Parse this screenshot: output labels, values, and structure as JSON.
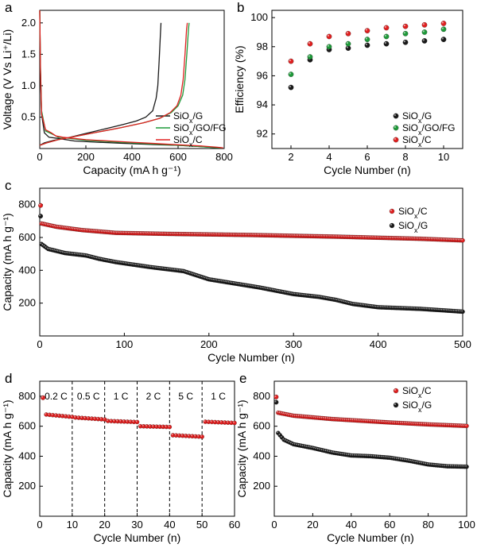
{
  "colors": {
    "black_series": "#1a1a1a",
    "green_series": "#1f9a3a",
    "red_series": "#e02020"
  },
  "chart_data": [
    {
      "panel": "a",
      "type": "line",
      "xlabel": "Capacity (mA h g⁻¹)",
      "ylabel": "Voltage (V Vs Li⁺/Li)",
      "xlim": [
        0,
        800
      ],
      "ylim": [
        0,
        2.2
      ],
      "xticks": [
        0,
        200,
        400,
        600,
        800
      ],
      "yticks": [
        0.5,
        1.0,
        1.5,
        2.0
      ],
      "legend": "right",
      "series": [
        {
          "name": "SiOx/G",
          "legend_main": "SiO",
          "legend_sub": "x",
          "legend_tail": "/G",
          "color": "black",
          "discharge": [
            [
              0,
              2.2
            ],
            [
              3,
              1.2
            ],
            [
              8,
              0.55
            ],
            [
              20,
              0.25
            ],
            [
              40,
              0.18
            ],
            [
              80,
              0.16
            ],
            [
              150,
              0.12
            ],
            [
              250,
              0.1
            ],
            [
              350,
              0.085
            ],
            [
              450,
              0.07
            ],
            [
              520,
              0.06
            ],
            [
              600,
              0.05
            ],
            [
              700,
              0.03
            ],
            [
              760,
              0.015
            ],
            [
              790,
              0.01
            ]
          ],
          "charge": [
            [
              0,
              0.05
            ],
            [
              20,
              0.09
            ],
            [
              60,
              0.13
            ],
            [
              120,
              0.17
            ],
            [
              200,
              0.24
            ],
            [
              280,
              0.31
            ],
            [
              360,
              0.38
            ],
            [
              420,
              0.44
            ],
            [
              460,
              0.5
            ],
            [
              490,
              0.6
            ],
            [
              505,
              0.8
            ],
            [
              512,
              1.0
            ],
            [
              518,
              1.4
            ],
            [
              523,
              1.8
            ],
            [
              526,
              2.0
            ]
          ]
        },
        {
          "name": "SiOx/GO/FG",
          "legend_main": "SiO",
          "legend_sub": "x",
          "legend_tail": "/GO/FG",
          "color": "green",
          "discharge": [
            [
              0,
              2.2
            ],
            [
              3,
              1.3
            ],
            [
              8,
              0.6
            ],
            [
              25,
              0.28
            ],
            [
              60,
              0.22
            ],
            [
              80,
              0.18
            ],
            [
              110,
              0.17
            ],
            [
              200,
              0.13
            ],
            [
              300,
              0.11
            ],
            [
              400,
              0.09
            ],
            [
              500,
              0.07
            ],
            [
              600,
              0.05
            ],
            [
              700,
              0.03
            ],
            [
              760,
              0.015
            ],
            [
              790,
              0.01
            ]
          ],
          "charge": [
            [
              0,
              0.05
            ],
            [
              30,
              0.09
            ],
            [
              80,
              0.14
            ],
            [
              150,
              0.19
            ],
            [
              250,
              0.26
            ],
            [
              350,
              0.33
            ],
            [
              450,
              0.41
            ],
            [
              520,
              0.48
            ],
            [
              570,
              0.57
            ],
            [
              600,
              0.68
            ],
            [
              620,
              0.85
            ],
            [
              630,
              1.1
            ],
            [
              638,
              1.5
            ],
            [
              645,
              1.9
            ],
            [
              648,
              2.0
            ]
          ]
        },
        {
          "name": "SiOx/C",
          "legend_main": "SiO",
          "legend_sub": "x",
          "legend_tail": "/C",
          "color": "red",
          "discharge": [
            [
              0,
              2.2
            ],
            [
              3,
              1.25
            ],
            [
              8,
              0.55
            ],
            [
              25,
              0.3
            ],
            [
              50,
              0.25
            ],
            [
              70,
              0.2
            ],
            [
              100,
              0.18
            ],
            [
              200,
              0.14
            ],
            [
              300,
              0.12
            ],
            [
              400,
              0.1
            ],
            [
              500,
              0.08
            ],
            [
              600,
              0.06
            ],
            [
              700,
              0.04
            ],
            [
              770,
              0.02
            ],
            [
              795,
              0.01
            ]
          ],
          "charge": [
            [
              0,
              0.05
            ],
            [
              30,
              0.09
            ],
            [
              80,
              0.14
            ],
            [
              150,
              0.19
            ],
            [
              250,
              0.26
            ],
            [
              350,
              0.33
            ],
            [
              450,
              0.41
            ],
            [
              520,
              0.48
            ],
            [
              565,
              0.57
            ],
            [
              595,
              0.68
            ],
            [
              612,
              0.85
            ],
            [
              622,
              1.1
            ],
            [
              630,
              1.5
            ],
            [
              637,
              1.9
            ],
            [
              640,
              2.0
            ]
          ]
        }
      ]
    },
    {
      "panel": "b",
      "type": "scatter",
      "xlabel": "Cycle Number (n)",
      "ylabel": "Efficiency (%)",
      "xlim": [
        1,
        11
      ],
      "ylim": [
        91,
        100.5
      ],
      "xticks": [
        2,
        4,
        6,
        8,
        10
      ],
      "yticks": [
        92,
        94,
        96,
        98,
        100
      ],
      "legend": "bottom-right",
      "x": [
        2,
        3,
        4,
        5,
        6,
        7,
        8,
        9,
        10
      ],
      "series": [
        {
          "name": "SiOx/G",
          "legend_main": "SiO",
          "legend_sub": "x",
          "legend_tail": "/G",
          "color": "black",
          "values": [
            95.2,
            97.1,
            97.8,
            97.9,
            98.1,
            98.2,
            98.3,
            98.4,
            98.5
          ]
        },
        {
          "name": "SiOx/GO/FG",
          "legend_main": "SiO",
          "legend_sub": "x",
          "legend_tail": "/GO/FG",
          "color": "green",
          "values": [
            96.1,
            97.3,
            98.0,
            98.2,
            98.5,
            98.7,
            98.9,
            99.0,
            99.2
          ]
        },
        {
          "name": "SiOx/C",
          "legend_main": "SiO",
          "legend_sub": "x",
          "legend_tail": "/C",
          "color": "red",
          "values": [
            97.0,
            98.2,
            98.7,
            98.9,
            99.1,
            99.3,
            99.4,
            99.5,
            99.6
          ]
        }
      ]
    },
    {
      "panel": "c",
      "type": "scatter",
      "xlabel": "Cycle Number (n)",
      "ylabel": "Capacity (mA h g⁻¹)",
      "xlim": [
        0,
        500
      ],
      "ylim": [
        0,
        900
      ],
      "xticks": [
        0,
        100,
        200,
        300,
        400,
        500
      ],
      "yticks": [
        200,
        400,
        600,
        800
      ],
      "legend": "top-right",
      "series": [
        {
          "name": "SiOx/C",
          "legend_main": "SiO",
          "legend_sub": "x",
          "legend_tail": "/C",
          "color": "red",
          "first_point": [
            1,
            795
          ],
          "curve": [
            [
              2,
              685
            ],
            [
              20,
              665
            ],
            [
              50,
              645
            ],
            [
              90,
              628
            ],
            [
              150,
              622
            ],
            [
              250,
              615
            ],
            [
              350,
              605
            ],
            [
              450,
              592
            ],
            [
              500,
              582
            ]
          ],
          "count": 500
        },
        {
          "name": "SiOx/G",
          "legend_main": "SiO",
          "legend_sub": "x",
          "legend_tail": "/G",
          "color": "black",
          "first_point": [
            1,
            730
          ],
          "curve": [
            [
              2,
              560
            ],
            [
              10,
              530
            ],
            [
              30,
              505
            ],
            [
              55,
              490
            ],
            [
              70,
              470
            ],
            [
              90,
              450
            ],
            [
              130,
              420
            ],
            [
              170,
              395
            ],
            [
              200,
              345
            ],
            [
              230,
              320
            ],
            [
              260,
              295
            ],
            [
              300,
              255
            ],
            [
              330,
              238
            ],
            [
              350,
              220
            ],
            [
              370,
              195
            ],
            [
              400,
              175
            ],
            [
              450,
              165
            ],
            [
              480,
              155
            ],
            [
              500,
              148
            ]
          ],
          "count": 500
        }
      ]
    },
    {
      "panel": "d",
      "type": "scatter",
      "xlabel": "Cycle Number (n)",
      "ylabel": "Capacity (mA h g⁻¹)",
      "xlim": [
        0,
        60
      ],
      "ylim": [
        0,
        900
      ],
      "xticks": [
        0,
        10,
        20,
        30,
        40,
        50,
        60
      ],
      "yticks": [
        200,
        400,
        600,
        800
      ],
      "dividers": [
        10,
        20,
        30,
        40,
        50
      ],
      "segment_labels": [
        {
          "text": "0.2 C",
          "x": 5
        },
        {
          "text": "0.5 C",
          "x": 15
        },
        {
          "text": "1 C",
          "x": 25
        },
        {
          "text": "2 C",
          "x": 35
        },
        {
          "text": "5 C",
          "x": 45
        },
        {
          "text": "1 C",
          "x": 55
        }
      ],
      "series": [
        {
          "name": "SiOx/C",
          "color": "red",
          "first_point": [
            1,
            790
          ],
          "segments": [
            {
              "x0": 2,
              "x1": 10,
              "y0": 678,
              "y1": 662
            },
            {
              "x0": 11,
              "x1": 20,
              "y0": 658,
              "y1": 645
            },
            {
              "x0": 21,
              "x1": 30,
              "y0": 635,
              "y1": 628
            },
            {
              "x0": 31,
              "x1": 40,
              "y0": 600,
              "y1": 595
            },
            {
              "x0": 41,
              "x1": 50,
              "y0": 540,
              "y1": 530
            },
            {
              "x0": 51,
              "x1": 60,
              "y0": 630,
              "y1": 622
            }
          ]
        }
      ]
    },
    {
      "panel": "e",
      "type": "scatter",
      "xlabel": "Cycle Number (n)",
      "ylabel": "Capacity (mA h g⁻¹)",
      "xlim": [
        0,
        100
      ],
      "ylim": [
        0,
        900
      ],
      "xticks": [
        0,
        20,
        40,
        60,
        80,
        100
      ],
      "yticks": [
        200,
        400,
        600,
        800
      ],
      "legend": "top-right",
      "series": [
        {
          "name": "SiOx/C",
          "legend_main": "SiO",
          "legend_sub": "x",
          "legend_tail": "/C",
          "color": "red",
          "first_point": [
            1,
            795
          ],
          "curve": [
            [
              2,
              690
            ],
            [
              10,
              670
            ],
            [
              30,
              648
            ],
            [
              60,
              625
            ],
            [
              80,
              612
            ],
            [
              100,
              602
            ]
          ],
          "count": 100
        },
        {
          "name": "SiOx/G",
          "legend_main": "SiO",
          "legend_sub": "x",
          "legend_tail": "/G",
          "color": "black",
          "first_point": [
            1,
            760
          ],
          "curve": [
            [
              2,
              555
            ],
            [
              5,
              510
            ],
            [
              10,
              480
            ],
            [
              20,
              455
            ],
            [
              30,
              425
            ],
            [
              40,
              405
            ],
            [
              50,
              400
            ],
            [
              60,
              390
            ],
            [
              70,
              370
            ],
            [
              80,
              345
            ],
            [
              90,
              333
            ],
            [
              100,
              330
            ]
          ],
          "count": 100
        }
      ]
    }
  ]
}
